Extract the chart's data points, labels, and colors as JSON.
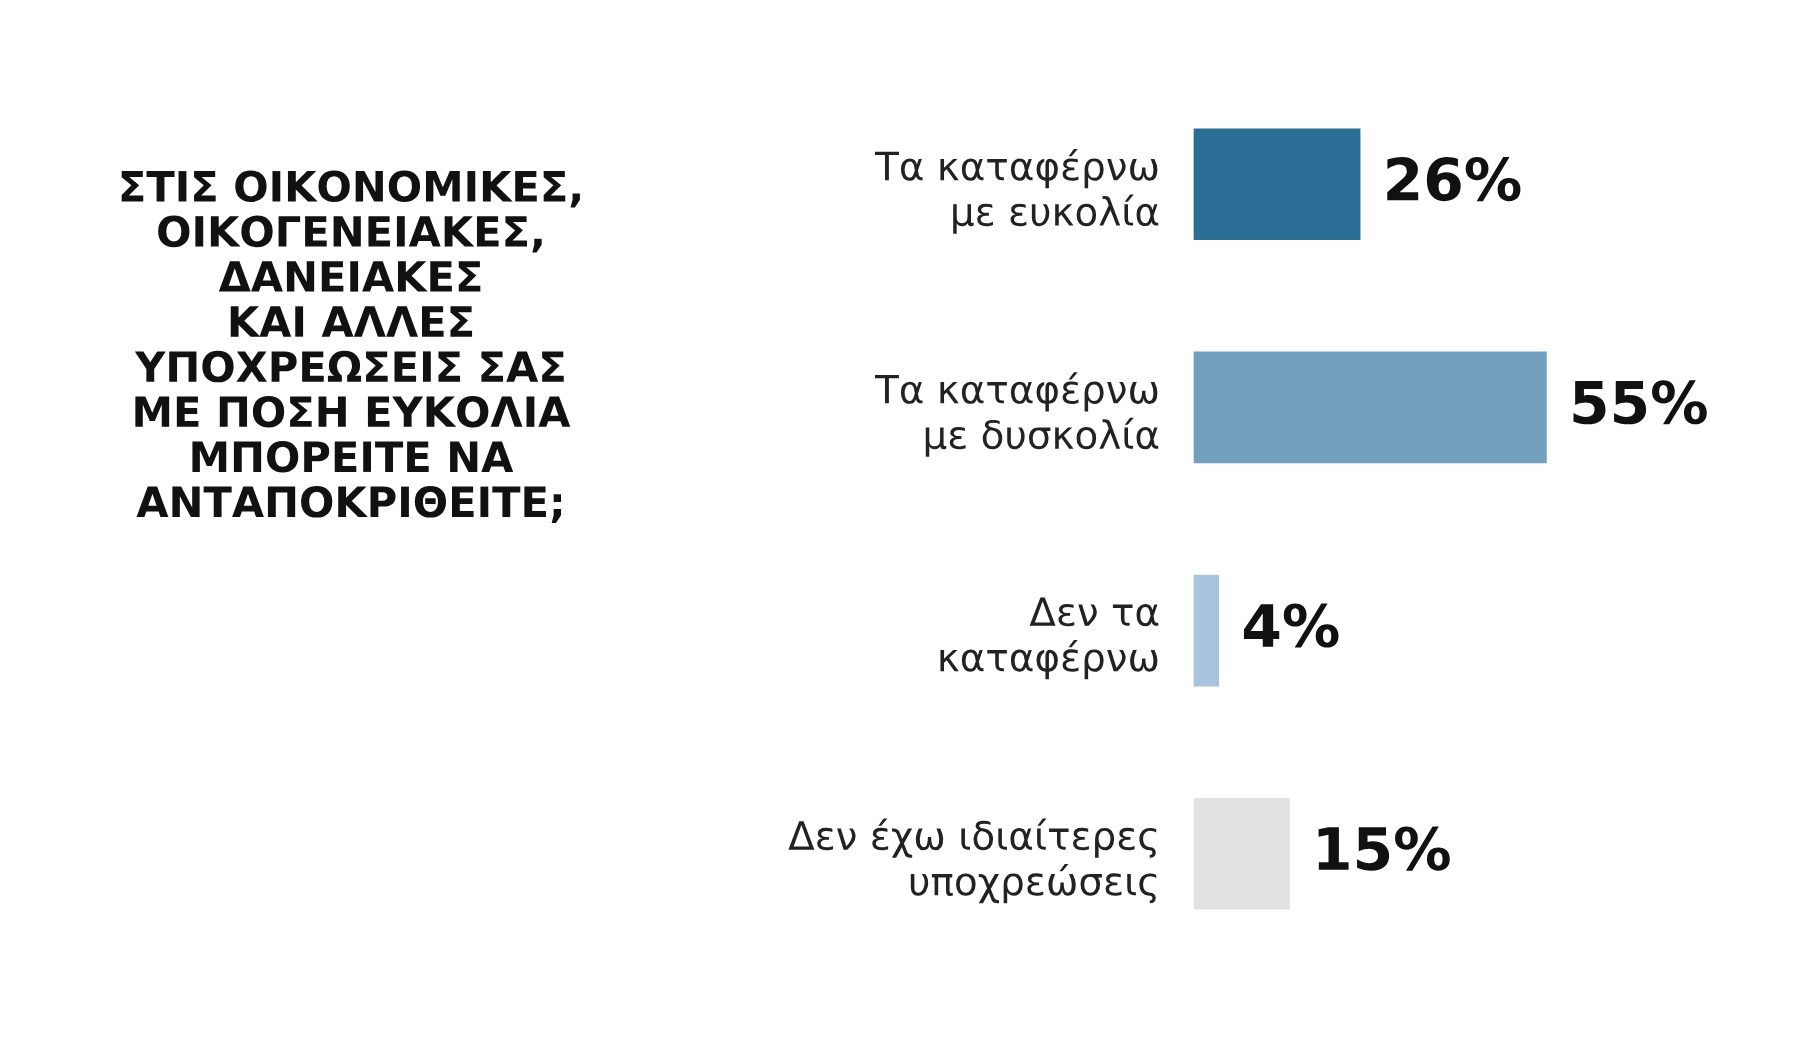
{
  "chart_data": {
    "type": "bar",
    "orientation": "horizontal",
    "title": "ΣΤΙΣ ΟΙΚΟΝΟΜΙΚΕΣ,\nΟΙΚΟΓΕΝΕΙΑΚΕΣ,\nΔΑΝΕΙΑΚΕΣ\nΚΑΙ ΑΛΛΕΣ\nΥΠΟΧΡΕΩΣΕΙΣ ΣΑΣ\nΜΕ ΠΟΣΗ ΕΥΚΟΛΙΑ\nΜΠΟΡΕΙΤΕ ΝΑ\nΑΝΤΑΠΟΚΡΙΘΕΙΤΕ;",
    "categories": [
      "Τα καταφέρνω\nμε ευκολία",
      "Τα καταφέρνω\nμε δυσκολία",
      "Δεν τα\nκαταφέρνω",
      "Δεν έχω ιδιαίτερες\nυποχρεώσεις"
    ],
    "values": [
      26,
      55,
      4,
      15
    ],
    "value_labels": [
      "26%",
      "55%",
      "4%",
      "15%"
    ],
    "colors": [
      "#2a6e96",
      "#74a0c0",
      "#a8c4dc",
      "#e0e2e4"
    ]
  }
}
